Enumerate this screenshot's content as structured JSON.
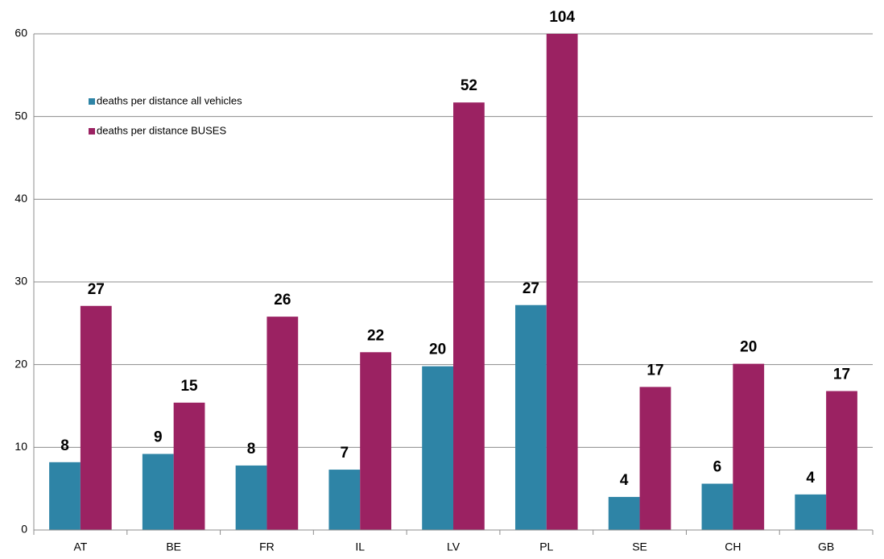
{
  "chart_data": {
    "type": "bar",
    "categories": [
      "AT",
      "BE",
      "FR",
      "IL",
      "LV",
      "PL",
      "SE",
      "CH",
      "GB"
    ],
    "series": [
      {
        "name": "deaths per distance all vehicles",
        "color": "#2e84a6",
        "values": [
          8.2,
          9.2,
          7.8,
          7.3,
          19.8,
          27.2,
          4.0,
          5.6,
          4.3
        ],
        "value_labels": [
          "8",
          "9",
          "8",
          "7",
          "20",
          "27",
          "4",
          "6",
          "4"
        ]
      },
      {
        "name": "deaths per distance BUSES",
        "color": "#9b2262",
        "values": [
          27.1,
          15.4,
          25.8,
          21.5,
          51.7,
          104,
          17.3,
          20.1,
          16.8
        ],
        "value_labels": [
          "27",
          "15",
          "26",
          "22",
          "52",
          "104",
          "17",
          "20",
          "17"
        ]
      }
    ],
    "ylim": [
      0,
      60
    ],
    "yticks": [
      0,
      10,
      20,
      30,
      40,
      50,
      60
    ],
    "grid": true,
    "legend": "upper left"
  }
}
